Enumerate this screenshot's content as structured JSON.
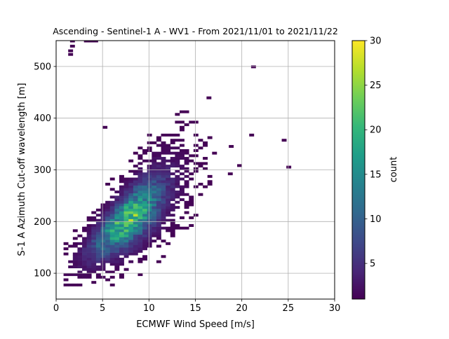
{
  "chart_data": {
    "type": "heatmap",
    "title": "Ascending - Sentinel-1 A - WV1 - From 2021/11/01 to 2021/11/22",
    "xlabel": "ECMWF Wind Speed [m/s]",
    "ylabel": "S-1 A Azimuth Cut-off wavelength [m]",
    "xlim": [
      0,
      30
    ],
    "ylim": [
      50,
      550
    ],
    "xticks": [
      "0",
      "5",
      "10",
      "15",
      "20",
      "25",
      "30"
    ],
    "yticks": [
      "100",
      "200",
      "300",
      "400",
      "500"
    ],
    "grid": true,
    "bin_width_x": 0.5,
    "bin_width_y": 5,
    "distribution": {
      "center": [
        7.5,
        195
      ],
      "x_range": [
        0.8,
        18
      ],
      "y_range": [
        75,
        430
      ],
      "correlation": "positive",
      "peak_count": 24
    },
    "outliers": [
      {
        "x": 1.5,
        "y": 547
      },
      {
        "x": 1.5,
        "y": 537
      },
      {
        "x": 1.3,
        "y": 528
      },
      {
        "x": 1.3,
        "y": 521
      },
      {
        "x": 3.0,
        "y": 547
      },
      {
        "x": 3.5,
        "y": 547
      },
      {
        "x": 4.0,
        "y": 547
      },
      {
        "x": 21.0,
        "y": 497
      },
      {
        "x": 24.3,
        "y": 355
      },
      {
        "x": 24.8,
        "y": 303
      },
      {
        "x": 20.8,
        "y": 365
      },
      {
        "x": 19.5,
        "y": 306
      },
      {
        "x": 18.5,
        "y": 290
      },
      {
        "x": 5.0,
        "y": 380
      },
      {
        "x": 16.2,
        "y": 437
      },
      {
        "x": 18.6,
        "y": 343
      }
    ],
    "colorbar": {
      "label": "count",
      "min": 1,
      "max": 30,
      "ticks": [
        "5",
        "10",
        "15",
        "20",
        "25",
        "30"
      ],
      "colormap": "viridis",
      "stops": [
        "#440154",
        "#482878",
        "#3e4989",
        "#31688e",
        "#26828e",
        "#1f9e89",
        "#35b779",
        "#6ece58",
        "#b5de2b",
        "#fde725"
      ]
    }
  }
}
